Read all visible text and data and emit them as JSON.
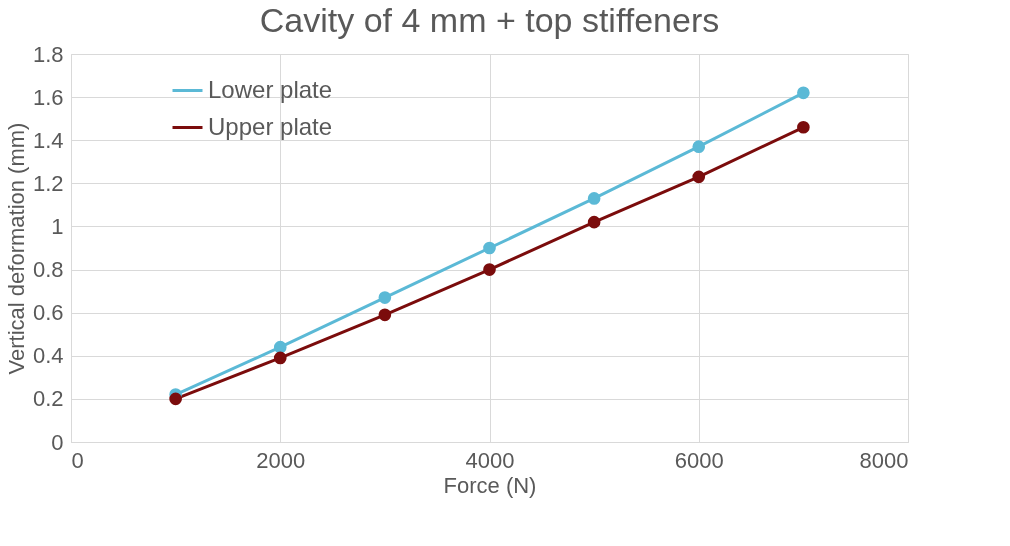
{
  "chart_data": {
    "type": "line",
    "title": "Cavity of 4 mm + top stiffeners",
    "xlabel": "Force (N)",
    "ylabel": "Vertical deformation (mm)",
    "x": [
      1000,
      2000,
      3000,
      4000,
      5000,
      6000,
      7000
    ],
    "series": [
      {
        "name": "Lower plate",
        "color": "#5bb9d6",
        "values": [
          0.22,
          0.44,
          0.67,
          0.9,
          1.13,
          1.37,
          1.62
        ]
      },
      {
        "name": "Upper plate",
        "color": "#7b0c0c",
        "values": [
          0.2,
          0.39,
          0.59,
          0.8,
          1.02,
          1.23,
          1.46
        ]
      }
    ],
    "xlim": [
      0,
      8000
    ],
    "xticks": [
      0,
      2000,
      4000,
      6000,
      8000
    ],
    "ylim": [
      0,
      1.8
    ],
    "yticks": [
      0,
      0.2,
      0.4,
      0.6,
      0.8,
      1,
      1.2,
      1.4,
      1.6,
      1.8
    ],
    "grid": true,
    "legend": "top left",
    "marker": "circle",
    "line_style": "solid"
  }
}
